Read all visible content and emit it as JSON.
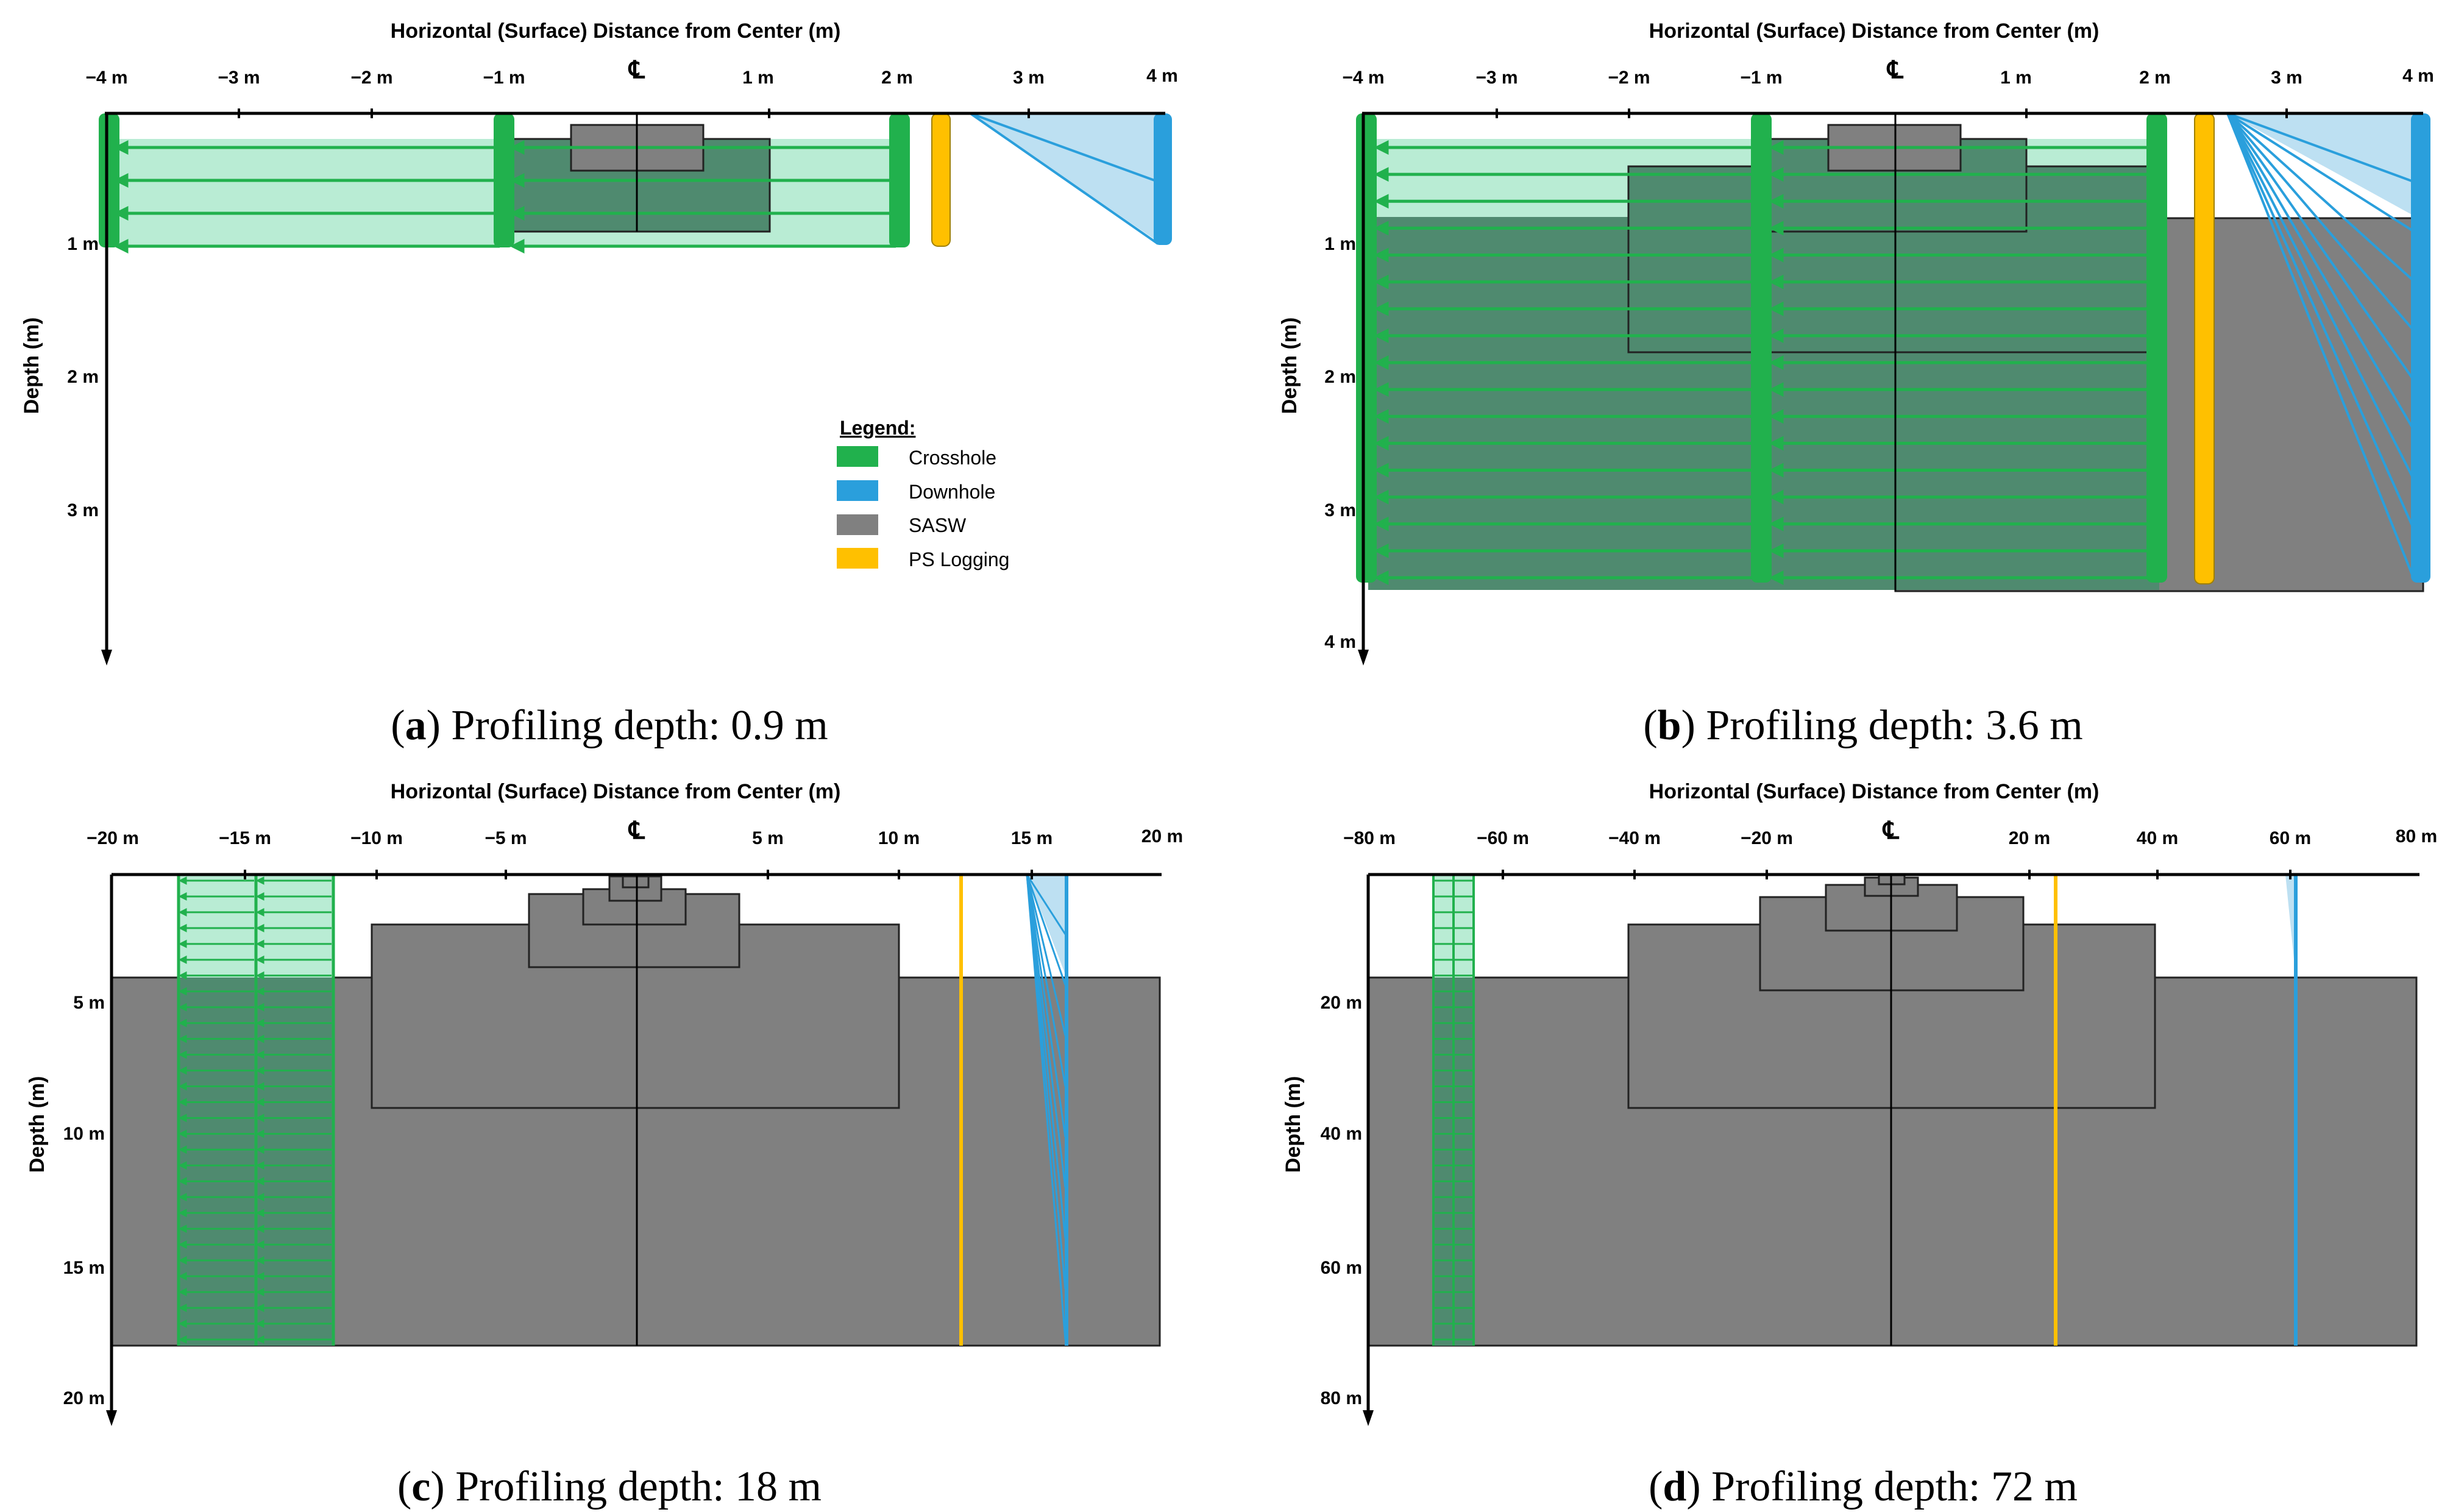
{
  "colors": {
    "crosshole": "#21b14d",
    "crosshole_fill": "#b9ecd4",
    "downhole": "#2a9fdc",
    "downhole_fill": "#bde0f2",
    "sasw": "#808080",
    "ps_logging": "#ffc000",
    "overlap": "#4f8a6f"
  },
  "legend": {
    "title": "Legend:",
    "items": [
      {
        "label": "Crosshole",
        "color": "#21b14d"
      },
      {
        "label": "Downhole",
        "color": "#2a9fdc"
      },
      {
        "label": "SASW",
        "color": "#808080"
      },
      {
        "label": "PS Logging",
        "color": "#ffc000"
      }
    ]
  },
  "centerline_symbol": "℄",
  "panels": [
    {
      "id": "a",
      "caption_letter": "a",
      "caption_text": "Profiling depth: 0.9 m",
      "x_axis_title": "Horizontal (Surface) Distance from Center (m)",
      "y_axis_title": "Depth (m)",
      "x_ticks": [
        "−4 m",
        "−3 m",
        "−2 m",
        "−1 m",
        "1 m",
        "2 m",
        "3 m",
        "4 m"
      ],
      "y_ticks": [
        "1 m",
        "2 m",
        "3 m"
      ],
      "profiling_depth_m": 0.9
    },
    {
      "id": "b",
      "caption_letter": "b",
      "caption_text": "Profiling depth: 3.6 m",
      "x_axis_title": "Horizontal (Surface) Distance from Center (m)",
      "y_axis_title": "Depth (m)",
      "x_ticks": [
        "−4 m",
        "−3 m",
        "−2 m",
        "−1 m",
        "1 m",
        "2 m",
        "3 m",
        "4 m"
      ],
      "y_ticks": [
        "1 m",
        "2 m",
        "3 m",
        "4 m"
      ],
      "profiling_depth_m": 3.6
    },
    {
      "id": "c",
      "caption_letter": "c",
      "caption_text": "Profiling depth: 18 m",
      "x_axis_title": "Horizontal (Surface) Distance from Center (m)",
      "y_axis_title": "Depth (m)",
      "x_ticks": [
        "−20 m",
        "−15 m",
        "−10 m",
        "−5 m",
        "5 m",
        "10 m",
        "15 m",
        "20 m"
      ],
      "y_ticks": [
        "5 m",
        "10 m",
        "15 m",
        "20 m"
      ],
      "profiling_depth_m": 18
    },
    {
      "id": "d",
      "caption_letter": "d",
      "caption_text": "Profiling depth: 72 m",
      "x_axis_title": "Horizontal (Surface) Distance from Center (m)",
      "y_axis_title": "Depth (m)",
      "x_ticks": [
        "−80 m",
        "−60 m",
        "−40 m",
        "−20 m",
        "20 m",
        "40 m",
        "60 m",
        "80 m"
      ],
      "y_ticks": [
        "20 m",
        "40 m",
        "60 m",
        "80 m"
      ],
      "profiling_depth_m": 72
    }
  ]
}
